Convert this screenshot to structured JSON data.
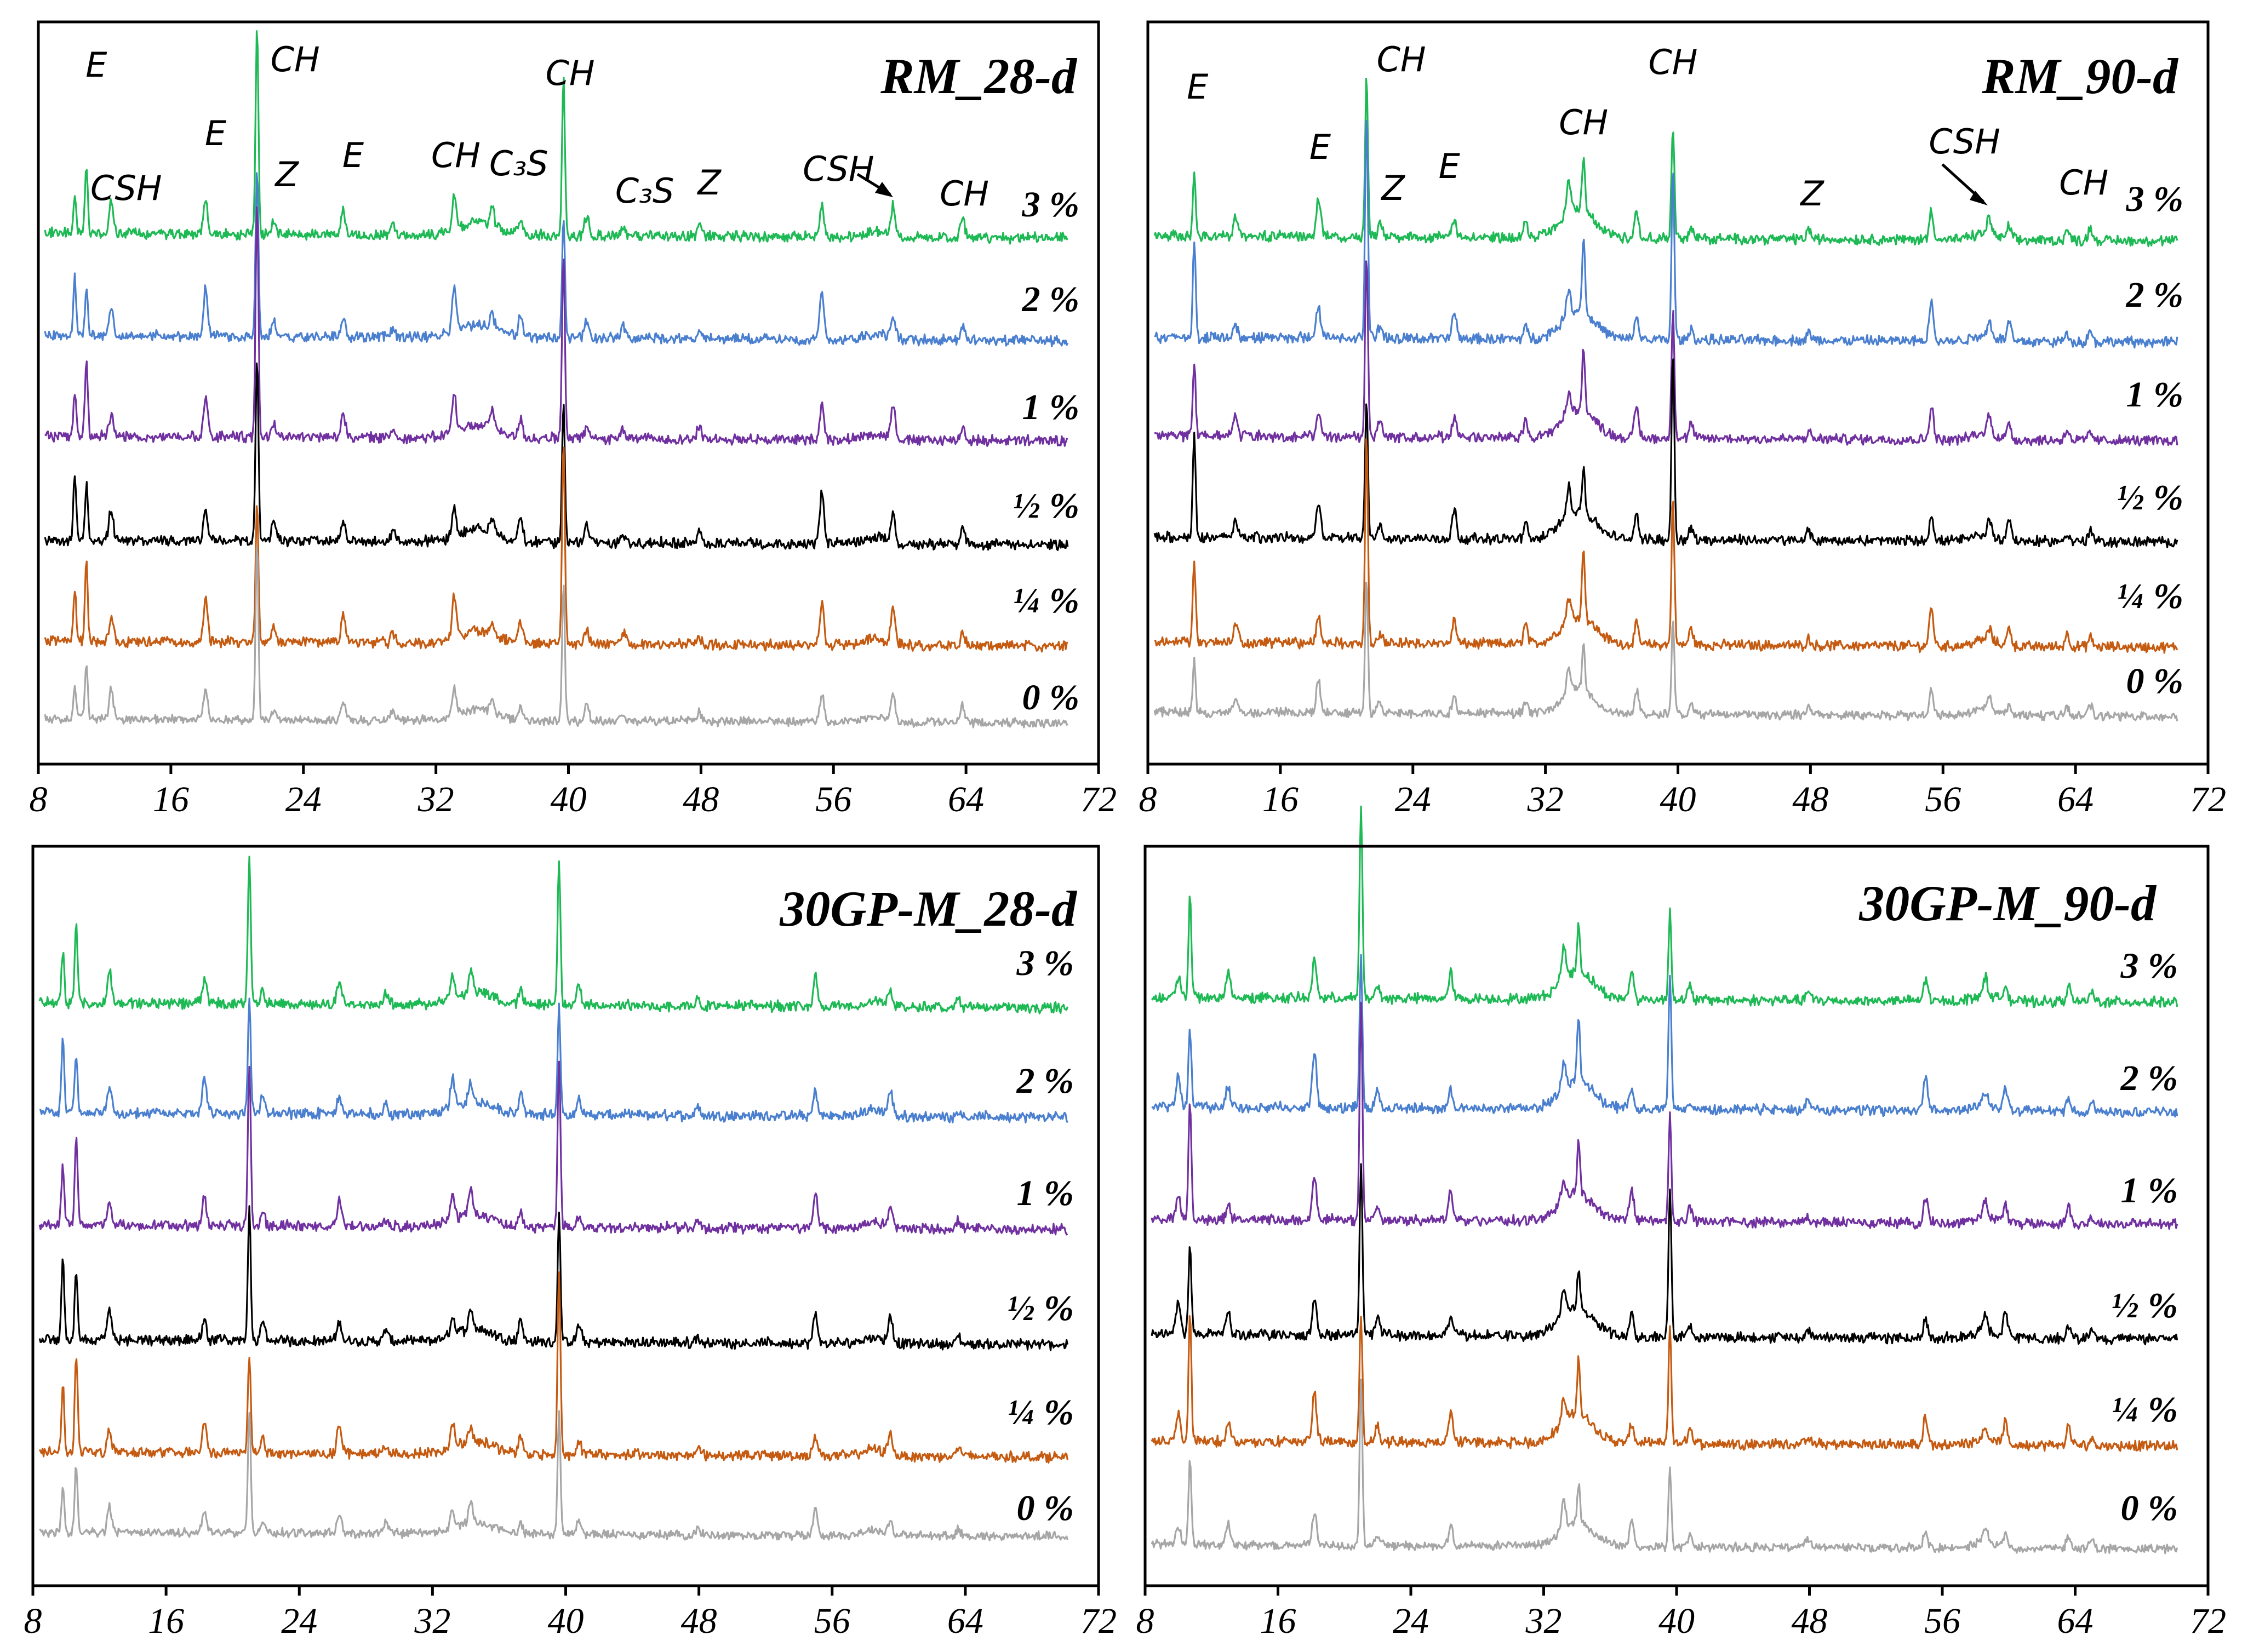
{
  "chart_data": [
    {
      "type": "line",
      "title": "RM_28-d",
      "xlabel": "",
      "ylabel": "",
      "xlim": [
        8,
        72
      ],
      "xticks": [
        "8",
        "16",
        "24",
        "32",
        "40",
        "48",
        "56",
        "64",
        "72"
      ],
      "series": [
        {
          "name": "3 %",
          "label": "3 %",
          "color": "#1db954"
        },
        {
          "name": "2 %",
          "label": "2 %",
          "color": "#4a7fcf"
        },
        {
          "name": "1 %",
          "label": "1 %",
          "color": "#7030a0"
        },
        {
          "name": "½ %",
          "label": "½ %",
          "color": "#000000"
        },
        {
          "name": "¼ %",
          "label": "¼ %",
          "color": "#c55a11"
        },
        {
          "name": "0 %",
          "label": "0 %",
          "color": "#a6a6a6"
        }
      ],
      "peaks": [
        {
          "x": 10.2,
          "h": 1.0
        },
        {
          "x": 10.9,
          "h": 1.25
        },
        {
          "x": 12.4,
          "h": 0.55
        },
        {
          "x": 18.1,
          "h": 0.75
        },
        {
          "x": 21.2,
          "h": 3.6
        },
        {
          "x": 22.2,
          "h": 0.3
        },
        {
          "x": 26.4,
          "h": 0.45
        },
        {
          "x": 29.4,
          "h": 0.2
        },
        {
          "x": 33.1,
          "h": 0.7
        },
        {
          "x": 35.4,
          "h": 0.3
        },
        {
          "x": 37.1,
          "h": 0.4
        },
        {
          "x": 39.7,
          "h": 3.1
        },
        {
          "x": 41.1,
          "h": 0.3
        },
        {
          "x": 43.3,
          "h": 0.2
        },
        {
          "x": 47.9,
          "h": 0.2
        },
        {
          "x": 55.3,
          "h": 0.8
        },
        {
          "x": 59.6,
          "h": 0.6
        },
        {
          "x": 63.8,
          "h": 0.3
        }
      ],
      "annotations": [
        {
          "text": "E",
          "x": 11.5
        },
        {
          "text": "CSH",
          "x": 13.3
        },
        {
          "text": "E",
          "x": 18.7
        },
        {
          "text": "CH",
          "x": 23.5
        },
        {
          "text": "Z",
          "x": 23.0
        },
        {
          "text": "E",
          "x": 27.0
        },
        {
          "text": "CH",
          "x": 33.2
        },
        {
          "text": "C₃S",
          "x": 37.0
        },
        {
          "text": "CH",
          "x": 40.1
        },
        {
          "text": "C₃S",
          "x": 44.6
        },
        {
          "text": "Z",
          "x": 48.5
        },
        {
          "text": "CSH",
          "x": 56.3
        },
        {
          "text": "CH",
          "x": 63.9
        }
      ]
    },
    {
      "type": "line",
      "title": "RM_90-d",
      "xlabel": "",
      "ylabel": "",
      "xlim": [
        8,
        72
      ],
      "xticks": [
        "8",
        "16",
        "24",
        "32",
        "40",
        "48",
        "56",
        "64",
        "72"
      ],
      "series": [
        {
          "name": "3 %",
          "label": "3 %",
          "color": "#1db954"
        },
        {
          "name": "2 %",
          "label": "2 %",
          "color": "#4a7fcf"
        },
        {
          "name": "1 %",
          "label": "1 %",
          "color": "#7030a0"
        },
        {
          "name": "½ %",
          "label": "½ %",
          "color": "#000000"
        },
        {
          "name": "¼ %",
          "label": "¼ %",
          "color": "#c55a11"
        },
        {
          "name": "0 %",
          "label": "0 %",
          "color": "#a6a6a6"
        }
      ],
      "peaks": [
        {
          "x": 10.8,
          "h": 1.6
        },
        {
          "x": 13.3,
          "h": 0.35
        },
        {
          "x": 18.3,
          "h": 0.6
        },
        {
          "x": 21.2,
          "h": 3.5
        },
        {
          "x": 22.0,
          "h": 0.25
        },
        {
          "x": 26.5,
          "h": 0.45
        },
        {
          "x": 30.8,
          "h": 0.3
        },
        {
          "x": 33.4,
          "h": 0.5
        },
        {
          "x": 34.3,
          "h": 1.2
        },
        {
          "x": 37.5,
          "h": 0.5
        },
        {
          "x": 39.7,
          "h": 2.9
        },
        {
          "x": 40.8,
          "h": 0.25
        },
        {
          "x": 47.9,
          "h": 0.15
        },
        {
          "x": 55.3,
          "h": 0.65
        },
        {
          "x": 58.8,
          "h": 0.3
        },
        {
          "x": 60.0,
          "h": 0.35
        },
        {
          "x": 63.5,
          "h": 0.2
        },
        {
          "x": 64.9,
          "h": 0.2
        }
      ],
      "annotations": [
        {
          "text": "E",
          "x": 11.0
        },
        {
          "text": "E",
          "x": 18.4
        },
        {
          "text": "CH",
          "x": 23.3
        },
        {
          "text": "Z",
          "x": 22.8
        },
        {
          "text": "E",
          "x": 26.2
        },
        {
          "text": "CH",
          "x": 34.3
        },
        {
          "text": "CH",
          "x": 39.7
        },
        {
          "text": "Z",
          "x": 48.1
        },
        {
          "text": "CSH",
          "x": 57.3
        },
        {
          "text": "CH",
          "x": 64.5
        }
      ]
    },
    {
      "type": "line",
      "title": "30GP-M_28-d",
      "xlabel": "",
      "ylabel": "",
      "xlim": [
        8,
        72
      ],
      "xticks": [
        "8",
        "16",
        "24",
        "32",
        "40",
        "48",
        "56",
        "64",
        "72"
      ],
      "series": [
        {
          "name": "3 %",
          "label": "3 %",
          "color": "#1db954"
        },
        {
          "name": "2 %",
          "label": "2 %",
          "color": "#4a7fcf"
        },
        {
          "name": "1 %",
          "label": "1 %",
          "color": "#7030a0"
        },
        {
          "name": "½ %",
          "label": "½ %",
          "color": "#000000"
        },
        {
          "name": "¼ %",
          "label": "¼ %",
          "color": "#c55a11"
        },
        {
          "name": "0 %",
          "label": "0 %",
          "color": "#a6a6a6"
        }
      ],
      "peaks": [
        {
          "x": 9.8,
          "h": 1.3
        },
        {
          "x": 10.6,
          "h": 1.55
        },
        {
          "x": 12.6,
          "h": 0.5
        },
        {
          "x": 18.3,
          "h": 0.55
        },
        {
          "x": 21.0,
          "h": 2.5
        },
        {
          "x": 21.8,
          "h": 0.3
        },
        {
          "x": 26.4,
          "h": 0.45
        },
        {
          "x": 29.2,
          "h": 0.2
        },
        {
          "x": 33.2,
          "h": 0.45
        },
        {
          "x": 34.3,
          "h": 0.4
        },
        {
          "x": 37.3,
          "h": 0.35
        },
        {
          "x": 39.6,
          "h": 2.8
        },
        {
          "x": 40.8,
          "h": 0.3
        },
        {
          "x": 47.9,
          "h": 0.15
        },
        {
          "x": 55.0,
          "h": 0.55
        },
        {
          "x": 59.5,
          "h": 0.4
        },
        {
          "x": 63.6,
          "h": 0.15
        }
      ],
      "annotations": []
    },
    {
      "type": "line",
      "title": "30GP-M_90-d",
      "xlabel": "",
      "ylabel": "",
      "xlim": [
        8,
        72
      ],
      "xticks": [
        "8",
        "16",
        "24",
        "32",
        "40",
        "48",
        "56",
        "64",
        "72"
      ],
      "series": [
        {
          "name": "3 %",
          "label": "3 %",
          "color": "#1db954"
        },
        {
          "name": "2 %",
          "label": "2 %",
          "color": "#4a7fcf"
        },
        {
          "name": "1 %",
          "label": "1 %",
          "color": "#7030a0"
        },
        {
          "name": "½ %",
          "label": "½ %",
          "color": "#000000"
        },
        {
          "name": "¼ %",
          "label": "¼ %",
          "color": "#c55a11"
        },
        {
          "name": "0 %",
          "label": "0 %",
          "color": "#a6a6a6"
        }
      ],
      "peaks": [
        {
          "x": 10.0,
          "h": 0.55
        },
        {
          "x": 10.7,
          "h": 2.0
        },
        {
          "x": 13.0,
          "h": 0.4
        },
        {
          "x": 18.2,
          "h": 0.85
        },
        {
          "x": 21.0,
          "h": 3.3
        },
        {
          "x": 22.0,
          "h": 0.3
        },
        {
          "x": 26.4,
          "h": 0.5
        },
        {
          "x": 33.2,
          "h": 0.5
        },
        {
          "x": 34.1,
          "h": 1.0
        },
        {
          "x": 37.3,
          "h": 0.5
        },
        {
          "x": 39.6,
          "h": 2.3
        },
        {
          "x": 40.8,
          "h": 0.25
        },
        {
          "x": 47.9,
          "h": 0.15
        },
        {
          "x": 55.0,
          "h": 0.5
        },
        {
          "x": 58.6,
          "h": 0.3
        },
        {
          "x": 59.8,
          "h": 0.4
        },
        {
          "x": 63.6,
          "h": 0.3
        },
        {
          "x": 65.0,
          "h": 0.15
        }
      ],
      "annotations": []
    }
  ]
}
